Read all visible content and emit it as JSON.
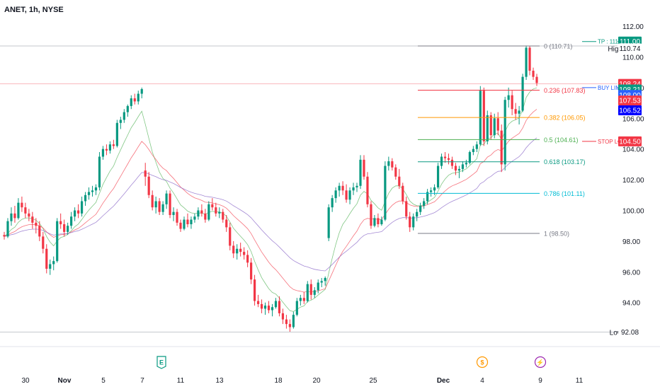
{
  "header": {
    "title": "ANET, 1h, NYSE"
  },
  "chart_data": {
    "type": "candlestick",
    "symbol": "ANET",
    "interval": "1h",
    "exchange": "NYSE",
    "ylim": [
      91.5,
      112.6
    ],
    "y_ticks": [
      94,
      96,
      98,
      100,
      102,
      104,
      106,
      108,
      110,
      112
    ],
    "y_tick_labels": [
      "94.00",
      "96.00",
      "98.00",
      "100.00",
      "102.00",
      "104.00",
      "106.00",
      "108.00",
      "110.00",
      "112.00"
    ],
    "x_tick_labels": [
      "30",
      "Nov",
      "5",
      "7",
      "11",
      "13",
      "18",
      "20",
      "25",
      "Dec",
      "4",
      "9",
      "11"
    ],
    "fib_levels": [
      {
        "ratio": "0",
        "price": 110.71,
        "label": "0 (110.71)",
        "color": "#787b86"
      },
      {
        "ratio": "0.236",
        "price": 107.83,
        "label": "0.236 (107.83)",
        "color": "#f23645"
      },
      {
        "ratio": "0.382",
        "price": 106.05,
        "label": "0.382 (106.05)",
        "color": "#ff9800"
      },
      {
        "ratio": "0.5",
        "price": 104.61,
        "label": "0.5 (104.61)",
        "color": "#4caf50"
      },
      {
        "ratio": "0.618",
        "price": 103.17,
        "label": "0.618 (103.17)",
        "color": "#089981"
      },
      {
        "ratio": "0.786",
        "price": 101.11,
        "label": "0.786 (101.11)",
        "color": "#00bcd4"
      },
      {
        "ratio": "1",
        "price": 98.5,
        "label": "1 (98.50)",
        "color": "#787b86"
      }
    ],
    "annotations": [
      {
        "label": "TP : 111-",
        "price": 111.0,
        "color": "#089981"
      },
      {
        "label": "BUY LIMIT",
        "price": 108.0,
        "color": "#2962ff"
      },
      {
        "label": "STOP LOSS",
        "price": 104.5,
        "color": "#f23645"
      }
    ],
    "price_labels": [
      {
        "text": "111.00",
        "price": 111.0,
        "bg": "#089981",
        "fg": "#ffffff"
      },
      {
        "text": "110.74",
        "price": 110.55,
        "bg": "#ffffff",
        "fg": "#131722",
        "prefix": "High"
      },
      {
        "text": "108.24",
        "price": 108.24,
        "bg": "#f23645",
        "fg": "#ffffff"
      },
      {
        "text": "108.21",
        "price": 107.88,
        "bg": "#089981",
        "fg": "#ffffff"
      },
      {
        "text": "108.00",
        "price": 107.52,
        "bg": "#2962ff",
        "fg": "#ffffff"
      },
      {
        "text": "107.53",
        "price": 107.16,
        "bg": "#f23645",
        "fg": "#ffffff"
      },
      {
        "text": "106.52",
        "price": 106.52,
        "bg": "#0000ff",
        "fg": "#ffffff"
      },
      {
        "text": "104.50",
        "price": 104.5,
        "bg": "#f23645",
        "fg": "#ffffff"
      },
      {
        "text": "92.08",
        "price": 92.08,
        "bg": "#ffffff",
        "fg": "#131722",
        "prefix": "Low"
      }
    ],
    "event_icons": [
      {
        "letter": "E",
        "tick": 4,
        "color": "#089981"
      },
      {
        "letter": "$",
        "tick": 10,
        "color": "#ff9800"
      },
      {
        "letter": "⚡",
        "tick": 11,
        "color": "#9c27b0"
      }
    ],
    "candles": [
      [
        98.4,
        98.6,
        98.1,
        98.3
      ],
      [
        98.3,
        99.5,
        98.2,
        99.3
      ],
      [
        99.3,
        100.2,
        99.0,
        99.8
      ],
      [
        99.8,
        100.3,
        99.2,
        99.5
      ],
      [
        99.5,
        100.8,
        99.4,
        100.5
      ],
      [
        100.5,
        100.9,
        99.9,
        100.2
      ],
      [
        100.2,
        100.5,
        99.5,
        99.8
      ],
      [
        99.8,
        100.1,
        99.3,
        99.6
      ],
      [
        99.6,
        99.9,
        98.8,
        99.2
      ],
      [
        99.2,
        99.5,
        98.5,
        99.0
      ],
      [
        99.0,
        99.3,
        98.0,
        98.3
      ],
      [
        98.3,
        98.6,
        97.2,
        97.5
      ],
      [
        97.5,
        97.8,
        95.9,
        96.2
      ],
      [
        96.2,
        96.8,
        95.8,
        96.5
      ],
      [
        96.5,
        97.0,
        96.1,
        96.7
      ],
      [
        96.7,
        99.5,
        96.6,
        99.3
      ],
      [
        99.3,
        99.8,
        98.8,
        99.1
      ],
      [
        99.1,
        99.4,
        98.3,
        98.6
      ],
      [
        98.6,
        99.2,
        98.4,
        99.0
      ],
      [
        99.0,
        99.9,
        98.8,
        99.6
      ],
      [
        99.6,
        100.2,
        99.3,
        100.0
      ],
      [
        100.0,
        100.4,
        99.5,
        99.8
      ],
      [
        99.8,
        100.9,
        99.6,
        100.6
      ],
      [
        100.6,
        101.2,
        100.3,
        101.0
      ],
      [
        101.0,
        101.5,
        100.7,
        101.2
      ],
      [
        101.2,
        101.6,
        100.9,
        101.3
      ],
      [
        101.3,
        101.7,
        101.0,
        101.5
      ],
      [
        101.5,
        103.8,
        101.3,
        103.5
      ],
      [
        103.5,
        104.2,
        103.3,
        104.0
      ],
      [
        104.0,
        104.3,
        103.6,
        103.9
      ],
      [
        103.9,
        104.5,
        103.7,
        104.3
      ],
      [
        104.3,
        104.6,
        104.0,
        104.2
      ],
      [
        104.2,
        105.9,
        104.1,
        105.7
      ],
      [
        105.7,
        106.1,
        105.3,
        105.9
      ],
      [
        105.9,
        106.6,
        105.7,
        106.4
      ],
      [
        106.4,
        106.9,
        106.1,
        106.8
      ],
      [
        106.8,
        107.5,
        106.6,
        107.3
      ],
      [
        107.3,
        107.6,
        106.9,
        107.1
      ],
      [
        107.1,
        107.8,
        106.9,
        107.6
      ],
      [
        107.6,
        108.0,
        107.3,
        107.9
      ],
      [
        102.6,
        103.1,
        101.6,
        102.2
      ],
      [
        102.2,
        102.5,
        100.8,
        101.0
      ],
      [
        101.0,
        101.3,
        100.0,
        100.2
      ],
      [
        100.2,
        100.9,
        99.8,
        100.6
      ],
      [
        100.6,
        100.8,
        99.7,
        99.9
      ],
      [
        99.9,
        100.6,
        99.7,
        100.4
      ],
      [
        100.4,
        101.3,
        100.1,
        101.1
      ],
      [
        101.1,
        101.3,
        99.5,
        99.7
      ],
      [
        99.7,
        100.2,
        99.3,
        99.9
      ],
      [
        99.9,
        100.1,
        99.0,
        99.2
      ],
      [
        99.2,
        99.4,
        98.6,
        98.8
      ],
      [
        98.8,
        99.6,
        98.7,
        99.4
      ],
      [
        99.4,
        99.8,
        98.9,
        99.1
      ],
      [
        99.1,
        99.6,
        98.8,
        99.4
      ],
      [
        99.4,
        99.8,
        99.2,
        99.6
      ],
      [
        99.6,
        100.2,
        99.4,
        100.0
      ],
      [
        100.0,
        100.4,
        99.6,
        99.8
      ],
      [
        99.8,
        100.1,
        99.2,
        99.4
      ],
      [
        99.4,
        100.6,
        99.3,
        100.4
      ],
      [
        100.4,
        100.8,
        100.0,
        100.2
      ],
      [
        100.2,
        100.5,
        99.6,
        99.8
      ],
      [
        99.8,
        100.2,
        99.5,
        99.9
      ],
      [
        99.9,
        100.1,
        99.2,
        99.4
      ],
      [
        99.4,
        99.7,
        98.6,
        98.9
      ],
      [
        98.9,
        99.2,
        97.4,
        97.7
      ],
      [
        97.7,
        98.0,
        96.9,
        97.2
      ],
      [
        97.2,
        97.8,
        96.8,
        97.5
      ],
      [
        97.5,
        97.9,
        97.0,
        97.3
      ],
      [
        97.3,
        97.6,
        96.8,
        97.1
      ],
      [
        97.1,
        97.4,
        96.3,
        96.6
      ],
      [
        96.6,
        96.9,
        95.2,
        95.5
      ],
      [
        95.5,
        95.8,
        93.8,
        94.1
      ],
      [
        94.1,
        94.5,
        93.7,
        93.9
      ],
      [
        93.9,
        94.2,
        93.3,
        93.6
      ],
      [
        93.6,
        94.0,
        93.2,
        93.8
      ],
      [
        93.8,
        94.1,
        93.3,
        93.5
      ],
      [
        93.5,
        93.9,
        93.1,
        93.7
      ],
      [
        93.7,
        94.3,
        93.6,
        94.1
      ],
      [
        94.1,
        94.4,
        93.1,
        93.3
      ],
      [
        93.3,
        93.6,
        92.6,
        92.9
      ],
      [
        92.9,
        93.2,
        92.3,
        92.6
      ],
      [
        92.6,
        92.9,
        92.1,
        92.4
      ],
      [
        92.4,
        93.4,
        92.3,
        93.2
      ],
      [
        93.2,
        94.3,
        93.1,
        94.1
      ],
      [
        94.1,
        94.5,
        93.8,
        94.3
      ],
      [
        94.3,
        94.7,
        93.9,
        94.1
      ],
      [
        94.1,
        95.4,
        94.0,
        95.2
      ],
      [
        95.2,
        95.5,
        94.2,
        94.5
      ],
      [
        94.5,
        95.0,
        94.3,
        94.8
      ],
      [
        94.8,
        95.5,
        94.6,
        95.3
      ],
      [
        95.3,
        95.6,
        95.0,
        95.4
      ],
      [
        95.4,
        95.7,
        95.1,
        95.6
      ],
      [
        98.2,
        100.4,
        98.0,
        100.2
      ],
      [
        100.2,
        101.0,
        99.9,
        100.8
      ],
      [
        100.8,
        101.5,
        100.5,
        101.3
      ],
      [
        101.3,
        101.8,
        100.9,
        101.6
      ],
      [
        101.6,
        101.9,
        101.0,
        101.3
      ],
      [
        101.3,
        101.7,
        100.5,
        100.7
      ],
      [
        100.7,
        101.5,
        100.4,
        101.3
      ],
      [
        101.3,
        101.8,
        101.0,
        101.5
      ],
      [
        101.5,
        101.8,
        101.2,
        101.6
      ],
      [
        101.6,
        103.6,
        101.4,
        103.3
      ],
      [
        103.3,
        103.6,
        102.0,
        102.2
      ],
      [
        102.2,
        102.5,
        100.2,
        100.4
      ],
      [
        100.4,
        100.6,
        98.8,
        99.0
      ],
      [
        99.0,
        99.7,
        98.9,
        99.5
      ],
      [
        99.5,
        99.8,
        98.9,
        99.1
      ],
      [
        99.1,
        99.6,
        99.0,
        99.4
      ],
      [
        99.4,
        103.2,
        99.3,
        102.9
      ],
      [
        102.9,
        103.5,
        102.6,
        103.2
      ],
      [
        103.2,
        103.4,
        102.6,
        102.8
      ],
      [
        102.8,
        103.0,
        102.0,
        102.2
      ],
      [
        102.2,
        102.7,
        101.4,
        101.6
      ],
      [
        101.6,
        101.8,
        100.4,
        100.6
      ],
      [
        100.6,
        100.9,
        99.4,
        99.6
      ],
      [
        99.6,
        99.9,
        98.6,
        98.9
      ],
      [
        98.9,
        99.8,
        98.7,
        99.6
      ],
      [
        99.6,
        100.1,
        99.3,
        99.9
      ],
      [
        99.9,
        100.5,
        99.7,
        100.3
      ],
      [
        100.3,
        100.8,
        100.1,
        100.6
      ],
      [
        100.6,
        101.4,
        100.4,
        101.2
      ],
      [
        101.2,
        101.5,
        100.9,
        101.3
      ],
      [
        101.3,
        101.7,
        101.0,
        101.5
      ],
      [
        101.5,
        103.1,
        101.4,
        102.9
      ],
      [
        102.9,
        103.7,
        102.7,
        103.5
      ],
      [
        103.5,
        103.8,
        103.1,
        103.4
      ],
      [
        103.4,
        103.7,
        103.0,
        103.3
      ],
      [
        103.3,
        103.5,
        102.7,
        102.9
      ],
      [
        102.9,
        103.1,
        102.3,
        102.6
      ],
      [
        102.6,
        102.9,
        102.1,
        102.7
      ],
      [
        102.7,
        103.2,
        102.5,
        103.0
      ],
      [
        103.0,
        103.3,
        102.8,
        103.1
      ],
      [
        103.1,
        103.9,
        103.0,
        103.8
      ],
      [
        103.8,
        104.2,
        103.6,
        104.0
      ],
      [
        104.0,
        104.5,
        103.8,
        104.3
      ],
      [
        104.3,
        108.1,
        104.2,
        107.8
      ],
      [
        107.8,
        108.0,
        104.2,
        104.5
      ],
      [
        104.5,
        106.5,
        104.3,
        106.2
      ],
      [
        106.2,
        106.4,
        104.6,
        104.9
      ],
      [
        104.9,
        106.3,
        104.7,
        106.0
      ],
      [
        106.0,
        106.4,
        104.9,
        105.2
      ],
      [
        105.2,
        105.6,
        102.5,
        103.0
      ],
      [
        103.0,
        107.4,
        102.6,
        107.2
      ],
      [
        107.2,
        108.0,
        106.7,
        107.5
      ],
      [
        107.5,
        107.8,
        106.2,
        106.6
      ],
      [
        106.6,
        107.0,
        105.9,
        106.3
      ],
      [
        106.3,
        106.8,
        105.6,
        106.5
      ],
      [
        106.5,
        108.9,
        106.4,
        108.7
      ],
      [
        108.7,
        110.74,
        108.5,
        110.6
      ],
      [
        110.6,
        110.7,
        108.8,
        109.1
      ],
      [
        109.1,
        109.3,
        108.5,
        108.7
      ],
      [
        108.7,
        108.9,
        108.1,
        108.3
      ]
    ]
  }
}
